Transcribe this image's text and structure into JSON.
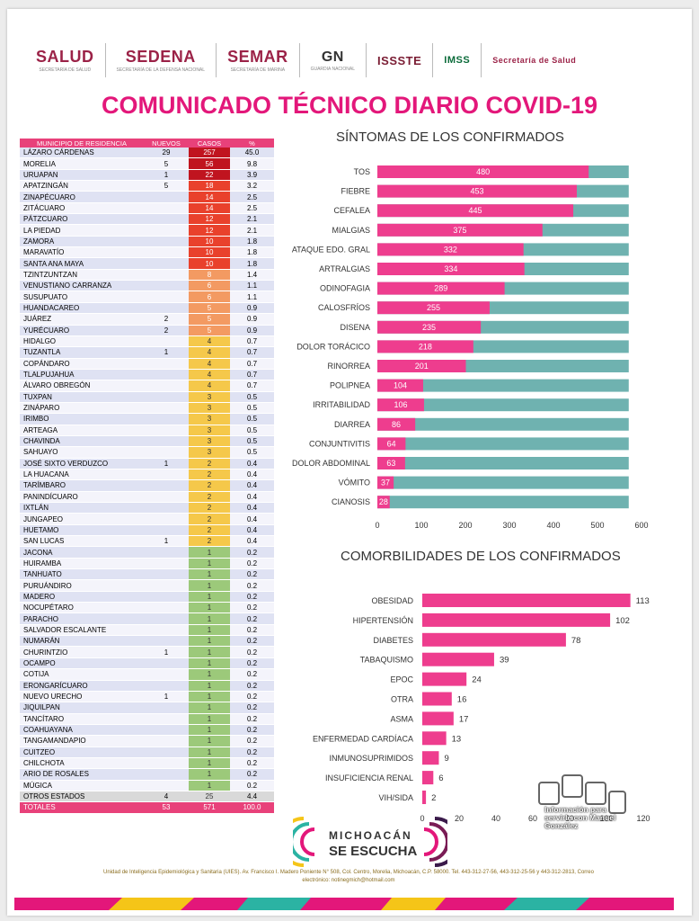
{
  "title": "COMUNICADO TÉCNICO DIARIO COVID-19",
  "logos": [
    {
      "title": "SALUD",
      "sub": "SECRETARÍA DE SALUD"
    },
    {
      "title": "SEDENA",
      "sub": "SECRETARÍA DE LA DEFENSA NACIONAL"
    },
    {
      "title": "SEMAR",
      "sub": "SECRETARÍA DE MARINA"
    },
    {
      "title": "GN",
      "sub": "GUARDIA NACIONAL"
    },
    {
      "title": "ISSSTE"
    },
    {
      "title": "IMSS"
    },
    {
      "title": "Secretaría de Salud"
    }
  ],
  "table": {
    "headers": [
      "MUNICIPIO DE RESIDENCIA",
      "NUEVOS",
      "CASOS",
      "%"
    ],
    "rows": [
      [
        "LÁZARO CÁRDENAS",
        "29",
        "257",
        "45.0"
      ],
      [
        "MORELIA",
        "5",
        "56",
        "9.8"
      ],
      [
        "URUAPAN",
        "1",
        "22",
        "3.9"
      ],
      [
        "APATZINGÁN",
        "5",
        "18",
        "3.2"
      ],
      [
        "ZINAPÉCUARO",
        "",
        "14",
        "2.5"
      ],
      [
        "ZITÁCUARO",
        "",
        "14",
        "2.5"
      ],
      [
        "PÁTZCUARO",
        "",
        "12",
        "2.1"
      ],
      [
        "LA PIEDAD",
        "",
        "12",
        "2.1"
      ],
      [
        "ZAMORA",
        "",
        "10",
        "1.8"
      ],
      [
        "MARAVATÍO",
        "",
        "10",
        "1.8"
      ],
      [
        "SANTA ANA MAYA",
        "",
        "10",
        "1.8"
      ],
      [
        "TZINTZUNTZAN",
        "",
        "8",
        "1.4"
      ],
      [
        "VENUSTIANO CARRANZA",
        "",
        "6",
        "1.1"
      ],
      [
        "SUSUPUATO",
        "",
        "6",
        "1.1"
      ],
      [
        "HUANDACAREO",
        "",
        "5",
        "0.9"
      ],
      [
        "JUÁREZ",
        "2",
        "5",
        "0.9"
      ],
      [
        "YURÉCUARO",
        "2",
        "5",
        "0.9"
      ],
      [
        "HIDALGO",
        "",
        "4",
        "0.7"
      ],
      [
        "TUZANTLA",
        "1",
        "4",
        "0.7"
      ],
      [
        "COPÁNDARO",
        "",
        "4",
        "0.7"
      ],
      [
        "TLALPUJAHUA",
        "",
        "4",
        "0.7"
      ],
      [
        "ÁLVARO OBREGÓN",
        "",
        "4",
        "0.7"
      ],
      [
        "TUXPAN",
        "",
        "3",
        "0.5"
      ],
      [
        "ZINÁPARO",
        "",
        "3",
        "0.5"
      ],
      [
        "IRIMBO",
        "",
        "3",
        "0.5"
      ],
      [
        "ARTEAGA",
        "",
        "3",
        "0.5"
      ],
      [
        "CHAVINDA",
        "",
        "3",
        "0.5"
      ],
      [
        "SAHUAYO",
        "",
        "3",
        "0.5"
      ],
      [
        "JOSÉ SIXTO VERDUZCO",
        "1",
        "2",
        "0.4"
      ],
      [
        "LA HUACANA",
        "",
        "2",
        "0.4"
      ],
      [
        "TARÍMBARO",
        "",
        "2",
        "0.4"
      ],
      [
        "PANINDÍCUARO",
        "",
        "2",
        "0.4"
      ],
      [
        "IXTLÁN",
        "",
        "2",
        "0.4"
      ],
      [
        "JUNGAPEO",
        "",
        "2",
        "0.4"
      ],
      [
        "HUETAMO",
        "",
        "2",
        "0.4"
      ],
      [
        "SAN LUCAS",
        "1",
        "2",
        "0.4"
      ],
      [
        "JACONA",
        "",
        "1",
        "0.2"
      ],
      [
        "HUIRAMBA",
        "",
        "1",
        "0.2"
      ],
      [
        "TANHUATO",
        "",
        "1",
        "0.2"
      ],
      [
        "PURUÁNDIRO",
        "",
        "1",
        "0.2"
      ],
      [
        "MADERO",
        "",
        "1",
        "0.2"
      ],
      [
        "NOCUPÉTARO",
        "",
        "1",
        "0.2"
      ],
      [
        "PARACHO",
        "",
        "1",
        "0.2"
      ],
      [
        "SALVADOR ESCALANTE",
        "",
        "1",
        "0.2"
      ],
      [
        "NUMARÁN",
        "",
        "1",
        "0.2"
      ],
      [
        "CHURINTZIO",
        "1",
        "1",
        "0.2"
      ],
      [
        "OCAMPO",
        "",
        "1",
        "0.2"
      ],
      [
        "COTIJA",
        "",
        "1",
        "0.2"
      ],
      [
        "ERONGARÍCUARO",
        "",
        "1",
        "0.2"
      ],
      [
        "NUEVO URECHO",
        "1",
        "1",
        "0.2"
      ],
      [
        "JIQUILPAN",
        "",
        "1",
        "0.2"
      ],
      [
        "TANCÍTARO",
        "",
        "1",
        "0.2"
      ],
      [
        "COAHUAYANA",
        "",
        "1",
        "0.2"
      ],
      [
        "TANGAMANDAPIO",
        "",
        "1",
        "0.2"
      ],
      [
        "CUITZEO",
        "",
        "1",
        "0.2"
      ],
      [
        "CHILCHOTA",
        "",
        "1",
        "0.2"
      ],
      [
        "ARIO DE ROSALES",
        "",
        "1",
        "0.2"
      ],
      [
        "MÚGICA",
        "",
        "1",
        "0.2"
      ]
    ],
    "otros": [
      "OTROS ESTADOS",
      "4",
      "25",
      "4.4"
    ],
    "totales": [
      "TOTALES",
      "53",
      "571",
      "100.0"
    ]
  },
  "colors": {
    "pink": "#ee3d8e",
    "teal": "#6fb2b0",
    "row_light": "#dfe2f3",
    "row_alt": "#f4f4fb",
    "case_dark": "#c0141f",
    "case_red": "#e9412c",
    "case_orange": "#f39a62",
    "case_yellow": "#f5c84a",
    "case_green": "#9cc97a"
  },
  "sintomas_title": "SÍNTOMAS DE LOS CONFIRMADOS",
  "comorb_title": "COMORBILIDADES DE LOS CONFIRMADOS",
  "brand": {
    "line1": "MICHOACÁN",
    "line2": "SE ESCUCHA"
  },
  "watermark": "Información para servirle con Manuel González",
  "footer": {
    "line1": "Unidad de Inteligencia Epidemiológica y Sanitaria (UIES). Av. Francisco I. Madero Poniente N° 508, Col. Centro, Morelia, Michoacán, C.P. 58000. Tel. 443-312-27-56, 443-312-25-56 y 443-312-2813, Correo",
    "line2": "electrónico: notinegmich@hotmail.com"
  },
  "chart_data": [
    {
      "type": "bar",
      "orientation": "horizontal",
      "stacked": "value vs total",
      "title": "SÍNTOMAS DE LOS CONFIRMADOS",
      "categories": [
        "TOS",
        "FIEBRE",
        "CEFALEA",
        "MIALGIAS",
        "ATAQUE EDO. GRAL",
        "ARTRALGIAS",
        "ODINOFAGIA",
        "CALOSFRÍOS",
        "DISENA",
        "DOLOR TORÁCICO",
        "RINORREA",
        "POLIPNEA",
        "IRRITABILIDAD",
        "DIARREA",
        "CONJUNTIVITIS",
        "DOLOR ABDOMINAL",
        "VÓMITO",
        "CIANOSIS"
      ],
      "values": [
        480,
        453,
        445,
        375,
        332,
        334,
        289,
        255,
        235,
        218,
        201,
        104,
        106,
        86,
        64,
        63,
        37,
        28
      ],
      "total": 571,
      "xlim": [
        0,
        600
      ],
      "xticks": [
        0,
        100,
        200,
        300,
        400,
        500,
        600
      ]
    },
    {
      "type": "bar",
      "orientation": "horizontal",
      "title": "COMORBILIDADES DE LOS CONFIRMADOS",
      "categories": [
        "OBESIDAD",
        "HIPERTENSIÓN",
        "DIABETES",
        "TABAQUISMO",
        "EPOC",
        "OTRA",
        "ASMA",
        "ENFERMEDAD CARDÍACA",
        "INMUNOSUPRIMIDOS",
        "INSUFICIENCIA RENAL",
        "VIH/SIDA"
      ],
      "values": [
        113,
        102,
        78,
        39,
        24,
        16,
        17,
        13,
        9,
        6,
        2
      ],
      "xlim": [
        0,
        120
      ],
      "xticks": [
        0,
        20,
        40,
        60,
        80,
        100,
        120
      ]
    }
  ]
}
